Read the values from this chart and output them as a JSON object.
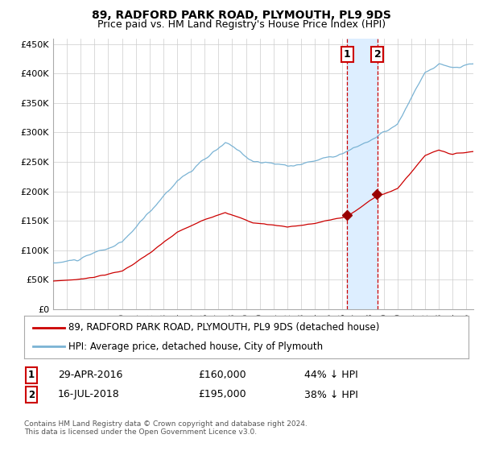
{
  "title": "89, RADFORD PARK ROAD, PLYMOUTH, PL9 9DS",
  "subtitle": "Price paid vs. HM Land Registry's House Price Index (HPI)",
  "legend_line1": "89, RADFORD PARK ROAD, PLYMOUTH, PL9 9DS (detached house)",
  "legend_line2": "HPI: Average price, detached house, City of Plymouth",
  "transaction1_date": "29-APR-2016",
  "transaction1_price": 160000,
  "transaction1_label": "44% ↓ HPI",
  "transaction2_date": "16-JUL-2018",
  "transaction2_price": 195000,
  "transaction2_label": "38% ↓ HPI",
  "footer": "Contains HM Land Registry data © Crown copyright and database right 2024.\nThis data is licensed under the Open Government Licence v3.0.",
  "hpi_color": "#7ab3d4",
  "property_color": "#cc0000",
  "marker_color": "#990000",
  "vline_color": "#cc0000",
  "vspan_color": "#ddeeff",
  "background_color": "#ffffff",
  "grid_color": "#cccccc",
  "ylim": [
    0,
    460000
  ],
  "xlim_start": 1995.0,
  "xlim_end": 2025.5,
  "t1": 2016.33,
  "t2": 2018.54
}
